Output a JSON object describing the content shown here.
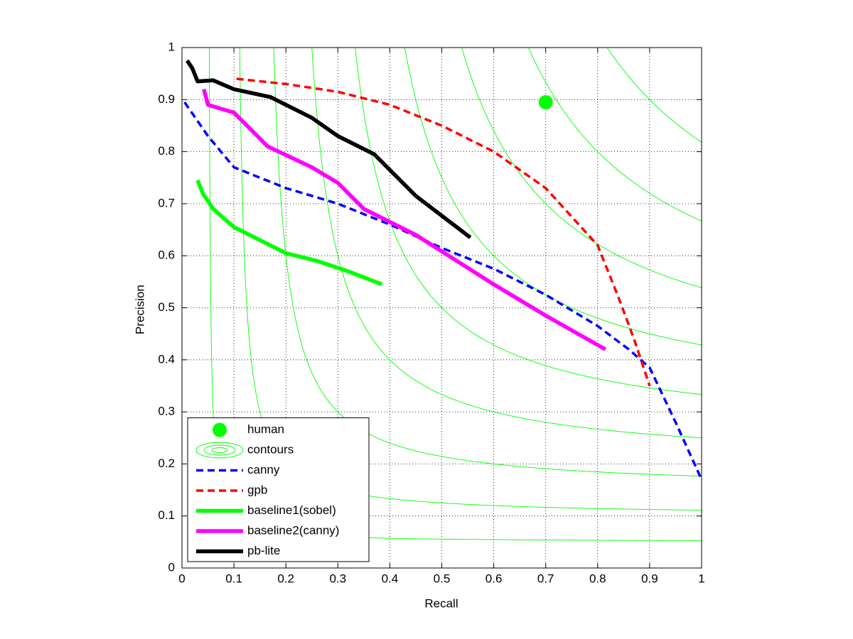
{
  "chart_data": {
    "type": "line",
    "x_label": "Recall",
    "y_label": "Precision",
    "xlim": [
      0,
      1
    ],
    "ylim": [
      0,
      1
    ],
    "xticks": [
      0,
      0.1,
      0.2,
      0.3,
      0.4,
      0.5,
      0.6,
      0.7,
      0.8,
      0.9,
      1
    ],
    "yticks": [
      0,
      0.1,
      0.2,
      0.3,
      0.4,
      0.5,
      0.6,
      0.7,
      0.8,
      0.9,
      1
    ],
    "grid": true,
    "legend": "lower left",
    "contours": {
      "name": "contours",
      "color": "#00ff00",
      "levels": [
        0.1,
        0.2,
        0.3,
        0.4,
        0.5,
        0.6,
        0.7,
        0.8,
        0.9
      ]
    },
    "series": [
      {
        "name": "human",
        "color": "#00ff00",
        "style": "marker",
        "x": [
          0.7
        ],
        "values": [
          0.895
        ]
      },
      {
        "name": "canny",
        "color": "#0000ff",
        "style": "dashed",
        "x": [
          0.005,
          0.05,
          0.1,
          0.2,
          0.3,
          0.4,
          0.5,
          0.6,
          0.7,
          0.8,
          0.86,
          0.9,
          0.95,
          1.0
        ],
        "values": [
          0.895,
          0.83,
          0.77,
          0.73,
          0.7,
          0.66,
          0.615,
          0.575,
          0.525,
          0.465,
          0.42,
          0.385,
          0.28,
          0.17
        ]
      },
      {
        "name": "gpb",
        "color": "#ff0000",
        "style": "dashed",
        "x": [
          0.105,
          0.2,
          0.3,
          0.4,
          0.5,
          0.6,
          0.7,
          0.8,
          0.84,
          0.87,
          0.9
        ],
        "values": [
          0.94,
          0.93,
          0.915,
          0.89,
          0.85,
          0.8,
          0.73,
          0.62,
          0.52,
          0.44,
          0.35
        ]
      },
      {
        "name": "baseline1(sobel)",
        "color": "#00ff00",
        "style": "solid",
        "x": [
          0.03,
          0.04,
          0.06,
          0.1,
          0.15,
          0.2,
          0.26,
          0.32,
          0.385
        ],
        "values": [
          0.745,
          0.72,
          0.69,
          0.655,
          0.63,
          0.605,
          0.59,
          0.57,
          0.545
        ]
      },
      {
        "name": "baseline2(canny)",
        "color": "#ff00ff",
        "style": "solid",
        "x": [
          0.042,
          0.05,
          0.1,
          0.14,
          0.165,
          0.25,
          0.3,
          0.35,
          0.45,
          0.6,
          0.7,
          0.815
        ],
        "values": [
          0.92,
          0.89,
          0.875,
          0.835,
          0.81,
          0.77,
          0.74,
          0.69,
          0.64,
          0.545,
          0.485,
          0.42
        ]
      },
      {
        "name": "pb-lite",
        "color": "#000000",
        "style": "solid",
        "x": [
          0.01,
          0.02,
          0.03,
          0.06,
          0.1,
          0.17,
          0.25,
          0.3,
          0.37,
          0.45,
          0.555
        ],
        "values": [
          0.975,
          0.96,
          0.935,
          0.937,
          0.92,
          0.905,
          0.865,
          0.83,
          0.795,
          0.715,
          0.635
        ]
      }
    ]
  }
}
